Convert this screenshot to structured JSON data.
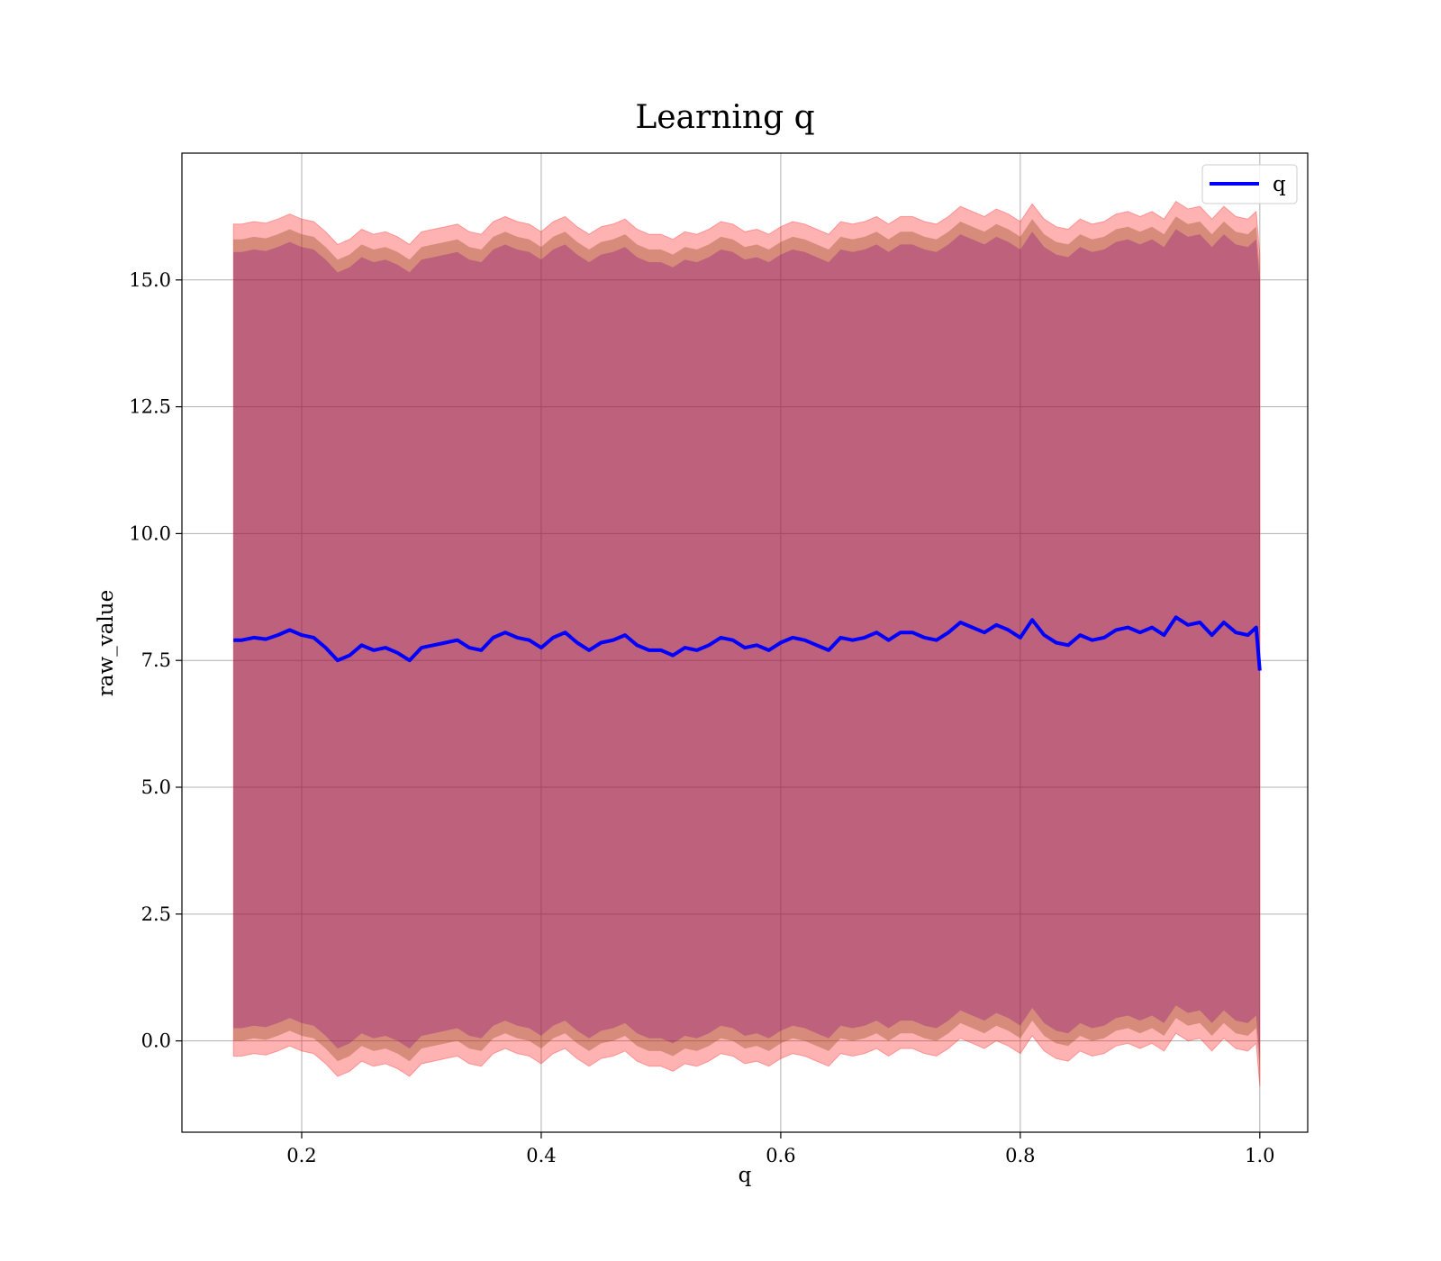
{
  "chart_data": {
    "type": "line",
    "title": "Learning q",
    "xlabel": "q",
    "ylabel": "raw_value",
    "xlim": [
      0.1,
      1.04
    ],
    "ylim": [
      -1.8,
      17.5
    ],
    "x_ticks": [
      0.2,
      0.4,
      0.6,
      0.8,
      1.0
    ],
    "x_tick_labels": [
      "0.2",
      "0.4",
      "0.6",
      "0.8",
      "1.0"
    ],
    "y_ticks": [
      0.0,
      2.5,
      5.0,
      7.5,
      10.0,
      12.5,
      15.0
    ],
    "y_tick_labels": [
      "0.0",
      "2.5",
      "5.0",
      "7.5",
      "10.0",
      "12.5",
      "15.0"
    ],
    "grid": true,
    "legend": {
      "position": "top-right",
      "entries": [
        "q"
      ]
    },
    "colors": {
      "line": "#0000ff",
      "outer_band": "#ff0000",
      "inner_band": "#8b4513",
      "core_band": "#800080"
    },
    "band_offsets": {
      "outer": 8.2,
      "middle": 7.9,
      "inner": 7.65
    },
    "series": [
      {
        "name": "q",
        "x": [
          0.143,
          0.15,
          0.16,
          0.17,
          0.18,
          0.19,
          0.2,
          0.21,
          0.22,
          0.23,
          0.24,
          0.25,
          0.26,
          0.27,
          0.28,
          0.29,
          0.3,
          0.31,
          0.32,
          0.33,
          0.34,
          0.35,
          0.36,
          0.37,
          0.38,
          0.39,
          0.4,
          0.41,
          0.42,
          0.43,
          0.44,
          0.45,
          0.46,
          0.47,
          0.48,
          0.49,
          0.5,
          0.51,
          0.52,
          0.53,
          0.54,
          0.55,
          0.56,
          0.57,
          0.58,
          0.59,
          0.6,
          0.61,
          0.62,
          0.63,
          0.64,
          0.65,
          0.66,
          0.67,
          0.68,
          0.69,
          0.7,
          0.71,
          0.72,
          0.73,
          0.74,
          0.75,
          0.76,
          0.77,
          0.78,
          0.79,
          0.8,
          0.81,
          0.82,
          0.83,
          0.84,
          0.85,
          0.86,
          0.87,
          0.88,
          0.89,
          0.9,
          0.91,
          0.92,
          0.93,
          0.94,
          0.95,
          0.96,
          0.97,
          0.98,
          0.99,
          0.997,
          1.0
        ],
        "y": [
          7.9,
          7.9,
          7.95,
          7.92,
          8.0,
          8.1,
          8.0,
          7.95,
          7.75,
          7.5,
          7.6,
          7.8,
          7.7,
          7.75,
          7.65,
          7.5,
          7.75,
          7.8,
          7.85,
          7.9,
          7.75,
          7.7,
          7.95,
          8.05,
          7.95,
          7.9,
          7.75,
          7.95,
          8.05,
          7.85,
          7.7,
          7.85,
          7.9,
          8.0,
          7.8,
          7.7,
          7.7,
          7.6,
          7.75,
          7.7,
          7.8,
          7.95,
          7.9,
          7.75,
          7.8,
          7.7,
          7.85,
          7.95,
          7.9,
          7.8,
          7.7,
          7.95,
          7.9,
          7.95,
          8.05,
          7.9,
          8.05,
          8.05,
          7.95,
          7.9,
          8.05,
          8.25,
          8.15,
          8.05,
          8.2,
          8.1,
          7.95,
          8.3,
          8.0,
          7.85,
          7.8,
          8.0,
          7.9,
          7.95,
          8.1,
          8.15,
          8.05,
          8.15,
          8.0,
          8.35,
          8.2,
          8.25,
          8.0,
          8.25,
          8.05,
          8.0,
          8.15,
          7.3
        ]
      }
    ]
  }
}
